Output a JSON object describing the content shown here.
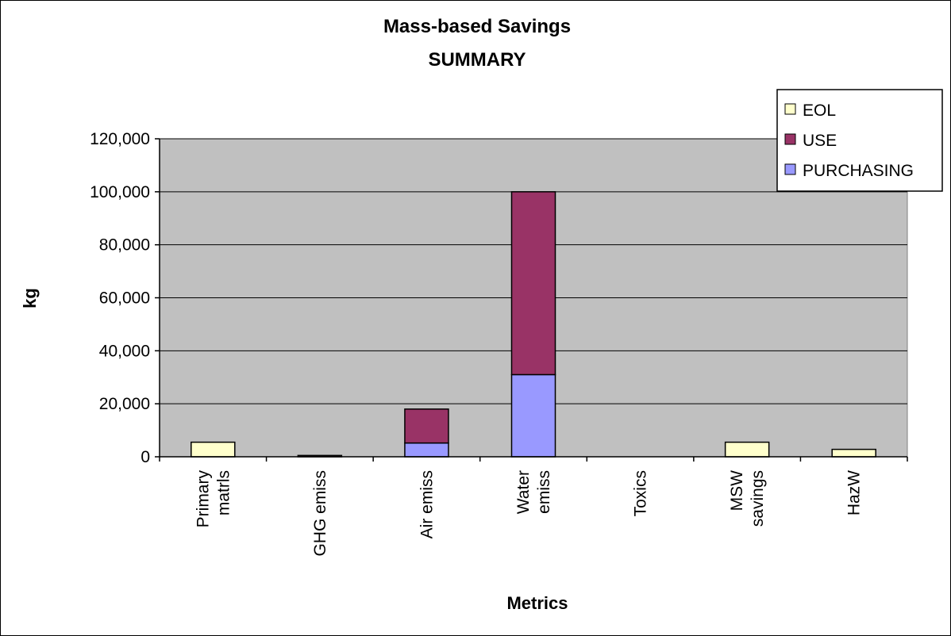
{
  "chart_data": {
    "type": "bar",
    "stacked": true,
    "title": "Mass-based Savings",
    "subtitle": "SUMMARY",
    "xlabel": "Metrics",
    "ylabel": "kg",
    "ylim": [
      0,
      120000
    ],
    "yticks": [
      0,
      20000,
      40000,
      60000,
      80000,
      100000,
      120000
    ],
    "ytick_labels": [
      "0",
      "20,000",
      "40,000",
      "60,000",
      "80,000",
      "100,000",
      "120,000"
    ],
    "categories": [
      [
        "Primary",
        "matrls"
      ],
      [
        "GHG emiss"
      ],
      [
        "Air emiss"
      ],
      [
        "Water",
        "emiss"
      ],
      [
        "Toxics"
      ],
      [
        "MSW",
        "savings"
      ],
      [
        "HazW"
      ]
    ],
    "series": [
      {
        "name": "PURCHASING",
        "color": "#9999ff",
        "values": [
          0,
          0,
          5200,
          31000,
          0,
          0,
          0
        ]
      },
      {
        "name": "USE",
        "color": "#993366",
        "values": [
          0,
          500,
          12800,
          69000,
          0,
          0,
          0
        ]
      },
      {
        "name": "EOL",
        "color": "#ffffcc",
        "values": [
          5500,
          0,
          0,
          0,
          0,
          5500,
          2800
        ]
      }
    ],
    "legend_order": [
      "EOL",
      "USE",
      "PURCHASING"
    ],
    "legend_position": "top-right",
    "plot_background": "#c0c0c0",
    "grid": true
  }
}
